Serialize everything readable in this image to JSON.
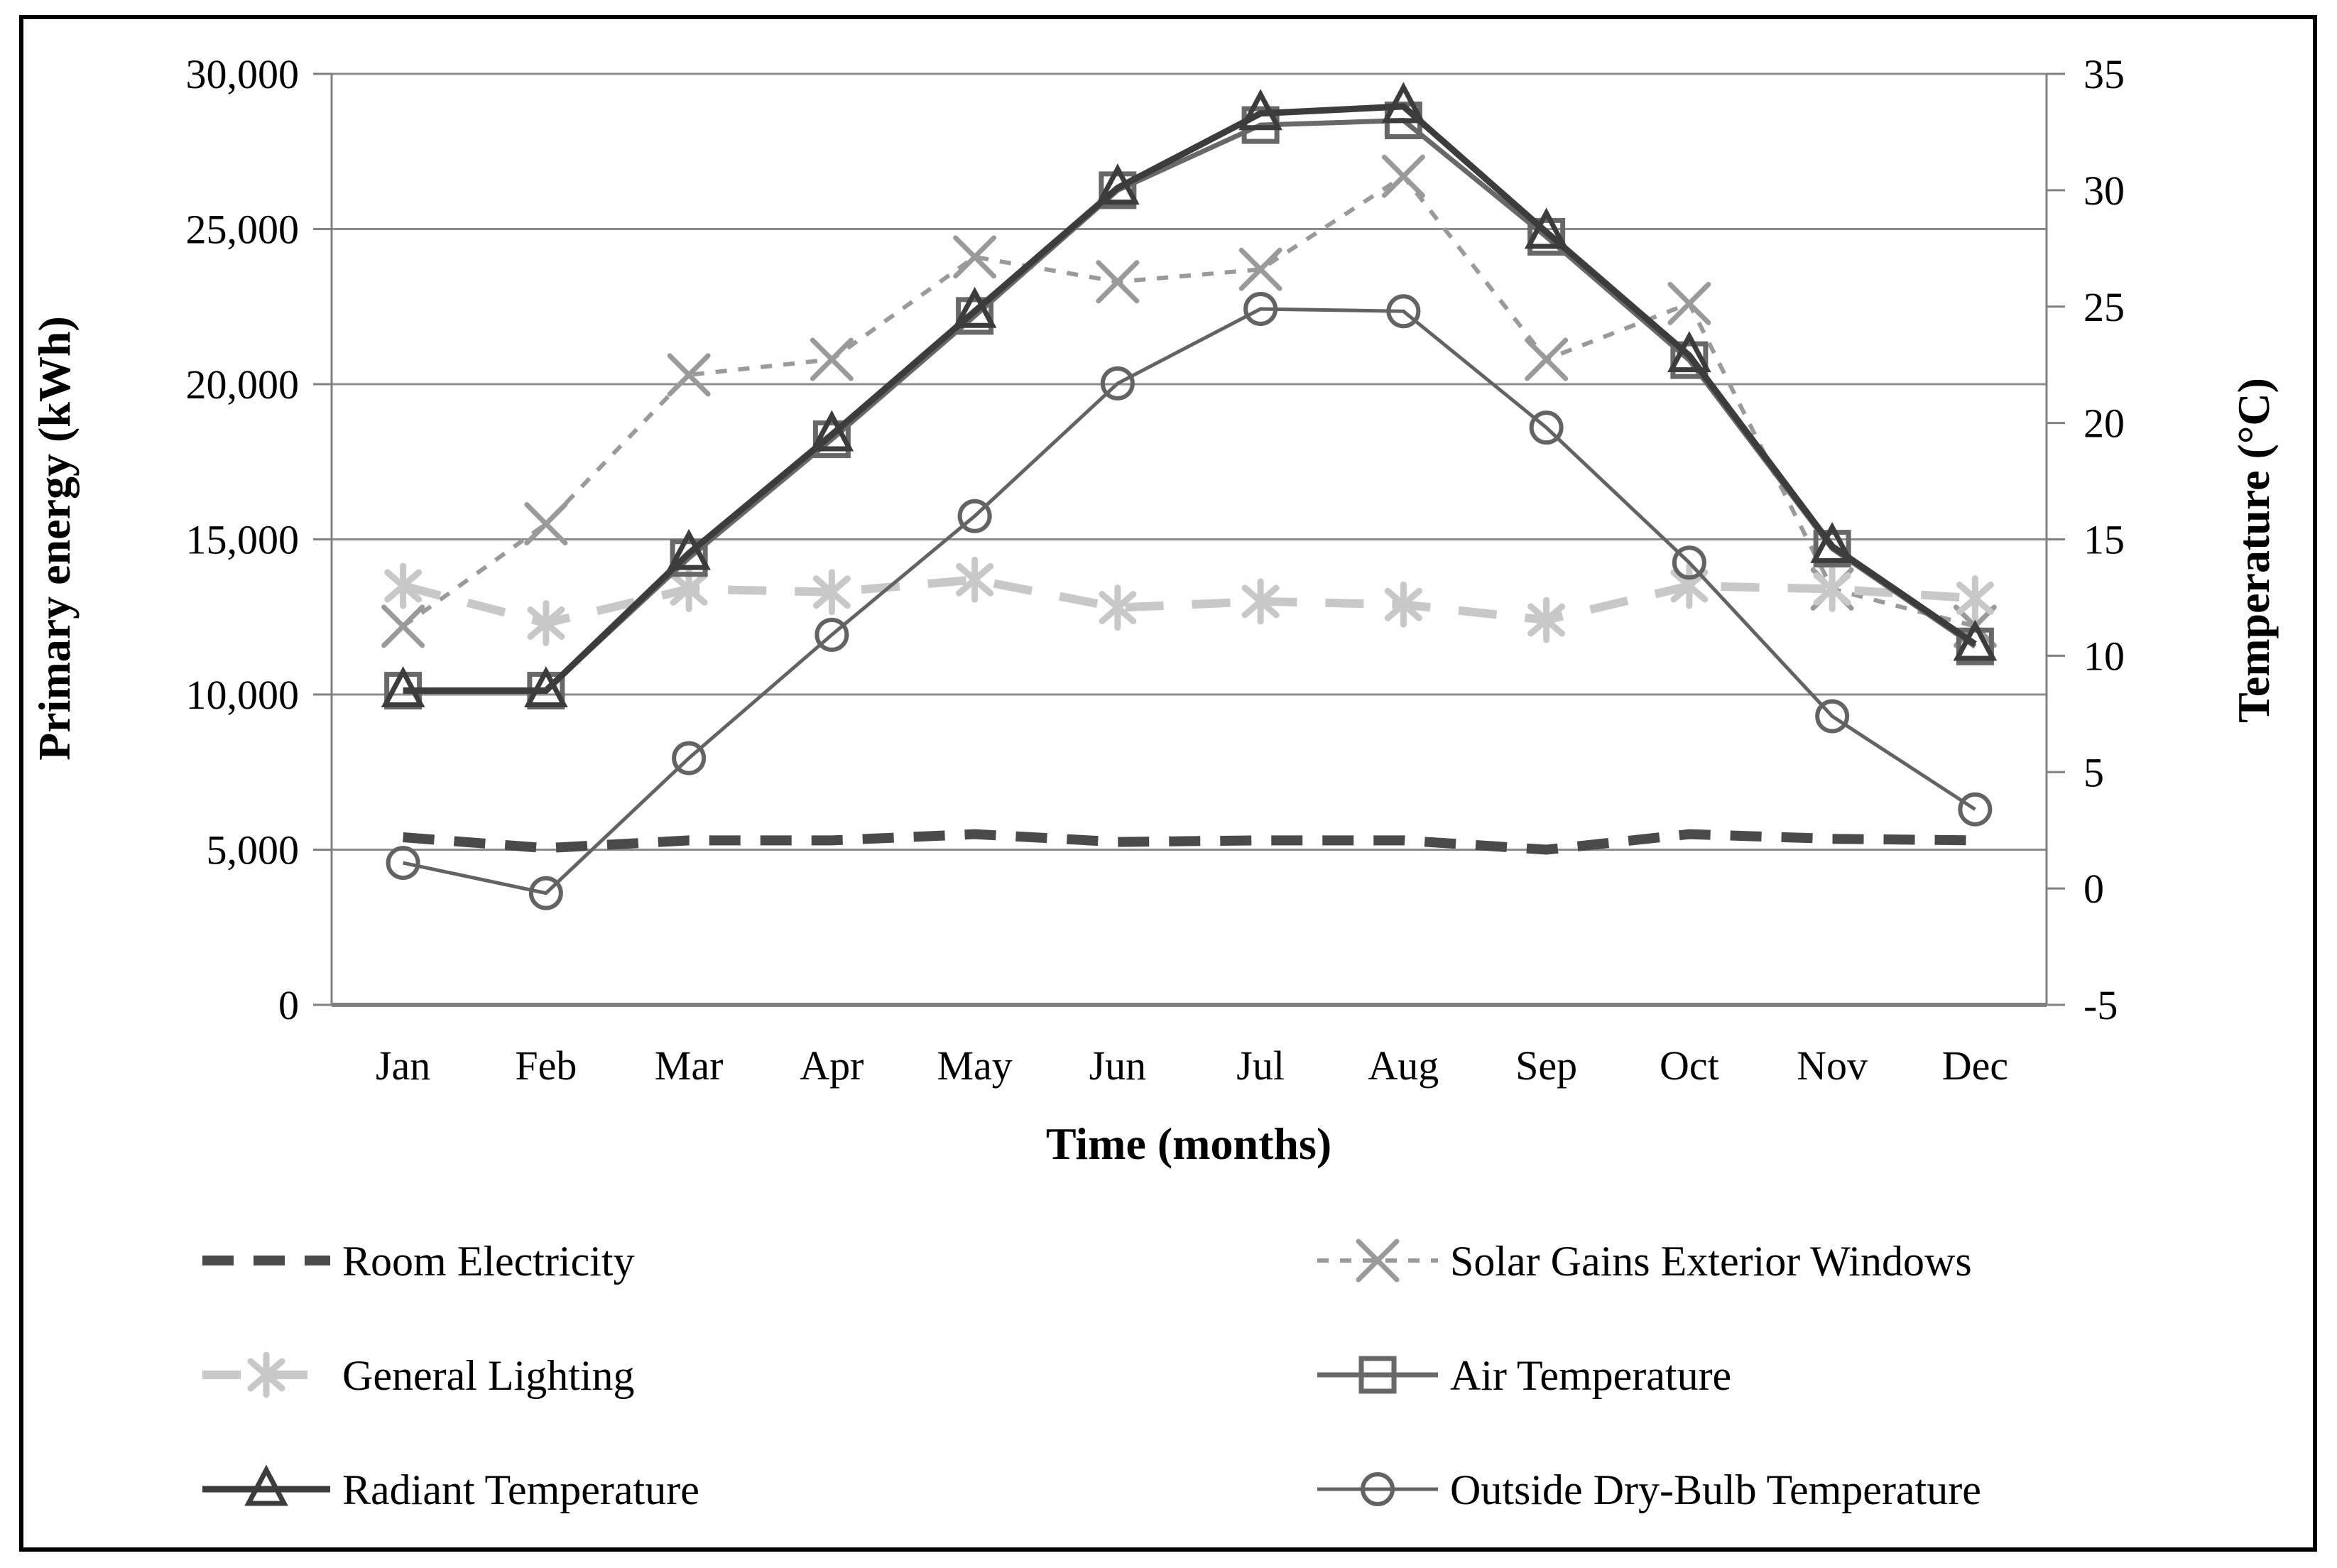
{
  "chart_data": {
    "type": "line",
    "title": "",
    "categories": [
      "Jan",
      "Feb",
      "Mar",
      "Apr",
      "May",
      "Jun",
      "Jul",
      "Aug",
      "Sep",
      "Oct",
      "Nov",
      "Dec"
    ],
    "xlabel": "Time  (months)",
    "ylabel_left": "Primary energy  (kWh)",
    "ylabel_right": "Temperature  (°C)",
    "ylim_left": [
      0,
      30000
    ],
    "ylim_right": [
      -5,
      35
    ],
    "yticks_left": [
      "0",
      "5,000",
      "10,000",
      "15,000",
      "20,000",
      "25,000",
      "30,000"
    ],
    "yticks_right": [
      "-5",
      "0",
      "5",
      "10",
      "15",
      "20",
      "25",
      "30",
      "35"
    ],
    "grid": true,
    "legend_position": "bottom-two-columns",
    "axis_color": "#808080",
    "grid_color": "#8c8c8c",
    "frame_color": "#000000",
    "series": [
      {
        "name": "Room Electricity",
        "axis": "left",
        "unit": "kWh",
        "color": "#4a4a4a",
        "dash": "44 28",
        "width": 14,
        "marker": "none",
        "legend_col": 0,
        "legend_row": 0,
        "values": [
          5400,
          5050,
          5300,
          5300,
          5500,
          5250,
          5300,
          5300,
          5000,
          5500,
          5350,
          5300
        ]
      },
      {
        "name": "General Lighting",
        "axis": "left",
        "unit": "kWh",
        "color": "#c8c8c8",
        "dash": "54 40",
        "width": 12,
        "marker": "asterisk",
        "legend_col": 0,
        "legend_row": 1,
        "values": [
          13500,
          12300,
          13400,
          13300,
          13700,
          12800,
          13000,
          12900,
          12400,
          13500,
          13400,
          13100
        ]
      },
      {
        "name": "Radiant Temperature",
        "axis": "right",
        "unit": "°C",
        "color": "#3c3c3c",
        "dash": "",
        "width": 9,
        "marker": "triangle",
        "legend_col": 0,
        "legend_row": 2,
        "values": [
          8.5,
          8.5,
          14.4,
          19.5,
          24.8,
          30.1,
          33.3,
          33.6,
          28.2,
          22.9,
          14.7,
          10.5
        ]
      },
      {
        "name": "Solar Gains Exterior Windows",
        "axis": "left",
        "unit": "kWh",
        "color": "#9a9a9a",
        "dash": "16 16",
        "width": 6,
        "marker": "x",
        "legend_col": 1,
        "legend_row": 0,
        "values": [
          12200,
          15500,
          20300,
          20800,
          24100,
          23300,
          23700,
          26700,
          20800,
          22600,
          13400,
          12200
        ]
      },
      {
        "name": "Air Temperature",
        "axis": "right",
        "unit": "°C",
        "color": "#686868",
        "dash": "",
        "width": 7,
        "marker": "square",
        "legend_col": 1,
        "legend_row": 1,
        "values": [
          8.5,
          8.5,
          14.2,
          19.3,
          24.6,
          30.0,
          32.8,
          33.0,
          28.0,
          22.7,
          14.6,
          10.4
        ]
      },
      {
        "name": "Outside Dry-Bulb Temperature",
        "axis": "right",
        "unit": "°C",
        "color": "#636363",
        "dash": "",
        "width": 5,
        "marker": "circle",
        "legend_col": 1,
        "legend_row": 2,
        "values": [
          1.1,
          -0.2,
          5.6,
          10.9,
          16.0,
          21.7,
          24.9,
          24.8,
          19.8,
          14.0,
          7.4,
          3.4
        ]
      }
    ]
  }
}
